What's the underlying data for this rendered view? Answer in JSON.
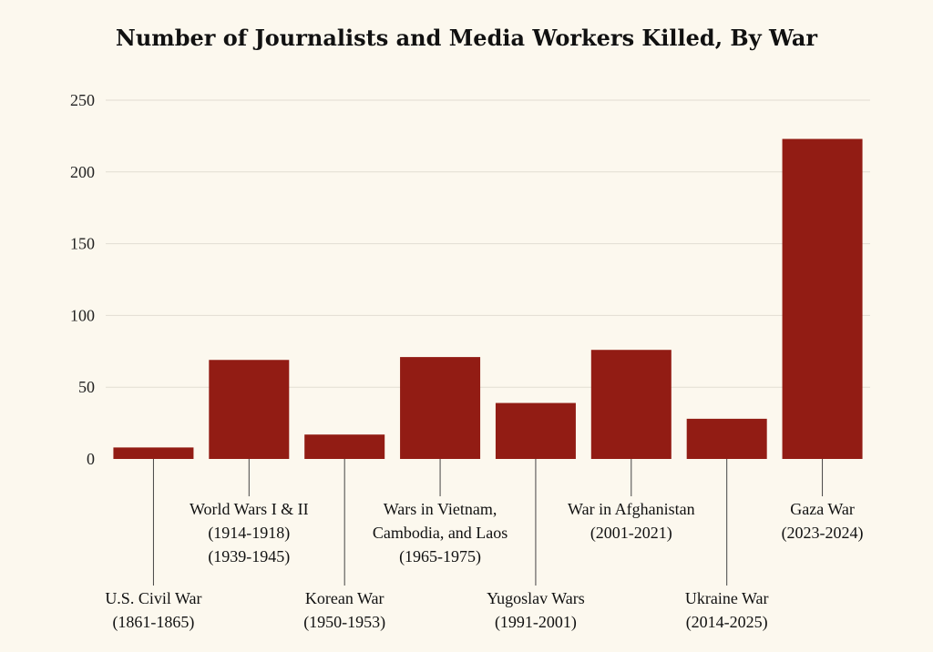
{
  "chart_data": {
    "type": "bar",
    "title": "Number of Journalists and Media Workers Killed, By War",
    "xlabel": "",
    "ylabel": "",
    "ylim": [
      0,
      250
    ],
    "yticks": [
      0,
      50,
      100,
      150,
      200,
      250
    ],
    "grid": true,
    "categories": [
      {
        "lines": [
          "U.S. Civil War",
          "(1861-1865)"
        ],
        "level": "low"
      },
      {
        "lines": [
          "World Wars I & II",
          "(1914-1918)",
          "(1939-1945)"
        ],
        "level": "high"
      },
      {
        "lines": [
          "Korean War",
          "(1950-1953)"
        ],
        "level": "low"
      },
      {
        "lines": [
          "Wars in Vietnam,",
          "Cambodia, and Laos",
          "(1965-1975)"
        ],
        "level": "high"
      },
      {
        "lines": [
          "Yugoslav Wars",
          "(1991-2001)"
        ],
        "level": "low"
      },
      {
        "lines": [
          "War in Afghanistan",
          "(2001-2021)"
        ],
        "level": "high"
      },
      {
        "lines": [
          "Ukraine War",
          "(2014-2025)"
        ],
        "level": "low"
      },
      {
        "lines": [
          "Gaza War",
          "(2023-2024)"
        ],
        "level": "high"
      }
    ],
    "values": [
      8,
      69,
      17,
      71,
      39,
      76,
      28,
      223
    ],
    "colors": {
      "bar": "#921c14",
      "grid": "#e2ddd2",
      "background": "#fcf8ee"
    }
  }
}
